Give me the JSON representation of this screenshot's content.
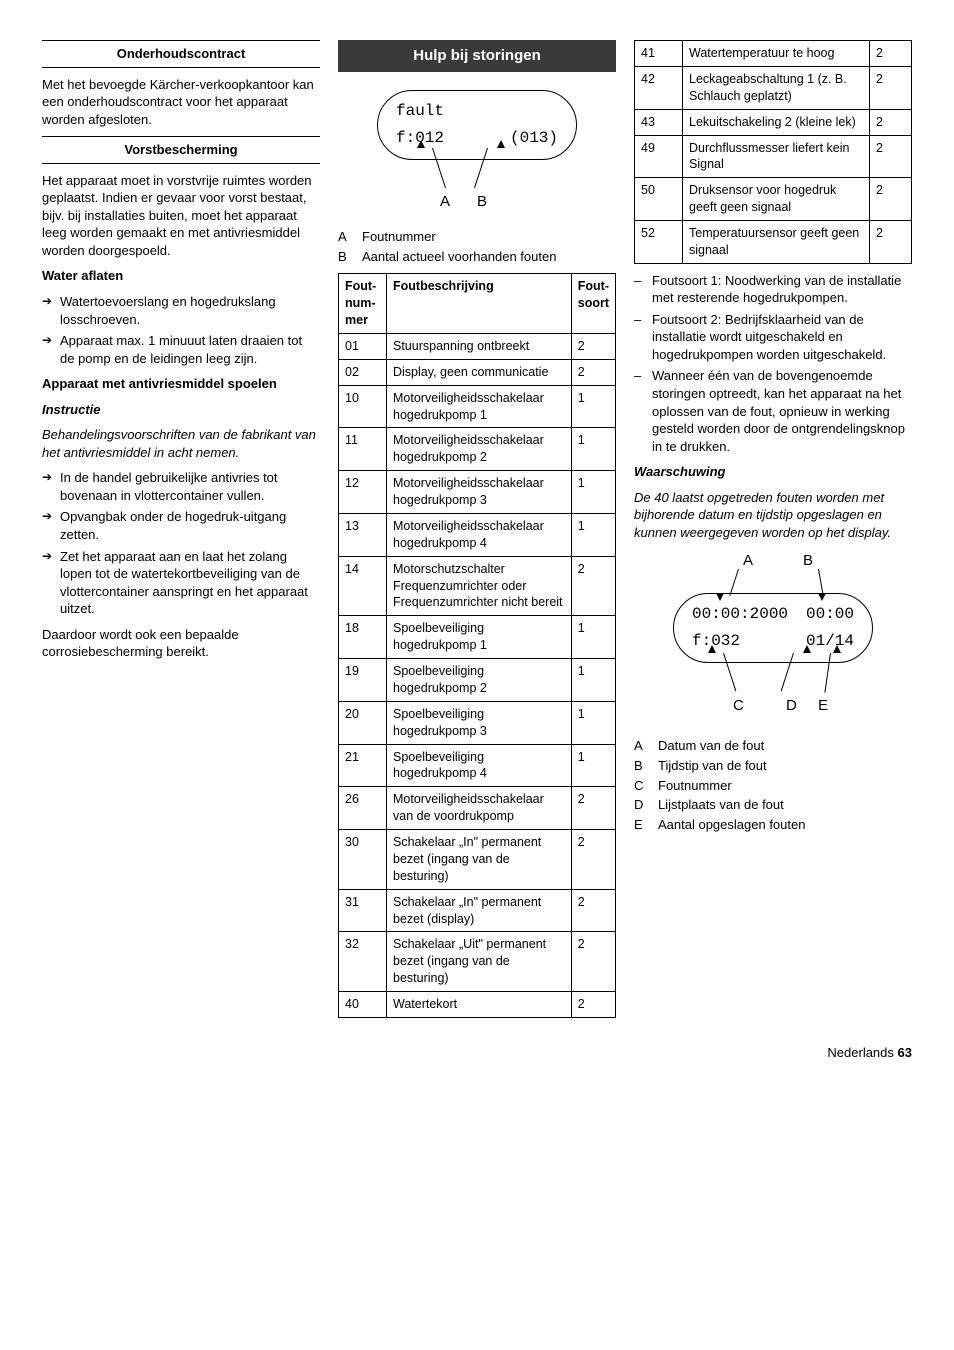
{
  "col1": {
    "h1": "Onderhoudscontract",
    "p1": "Met het bevoegde Kärcher-verkoopkantoor kan een onderhoudscontract voor het apparaat worden afgesloten.",
    "h2": "Vorstbescherming",
    "p2": "Het apparaat moet in vorstvrije ruimtes worden geplaatst. Indien er gevaar voor vorst bestaat, bijv. bij installaties buiten, moet het apparaat leeg worden gemaakt en met antivriesmiddel worden doorgespoeld.",
    "h3": "Water aflaten",
    "b1": "Watertoevoerslang en hogedrukslang losschroeven.",
    "b2": "Apparaat max. 1 minuuut laten draaien tot de pomp en de leidingen leeg zijn.",
    "h4": "Apparaat met antivriesmiddel spoelen",
    "h5": "Instructie",
    "p3": "Behandelingsvoorschriften van de fabrikant van het antivriesmiddel in acht nemen.",
    "b3": "In de handel gebruikelijke antivries tot bovenaan in vlottercontainer vullen.",
    "b4": "Opvangbak onder de hogedruk-uitgang zetten.",
    "b5": "Zet het apparaat aan en laat het zolang lopen tot de watertekortbeveiliging van de vlottercontainer aanspringt en het apparaat uitzet.",
    "p4": "Daardoor wordt ook een bepaalde corrosiebescherming bereikt."
  },
  "col2": {
    "title": "Hulp bij storingen",
    "screen_l1": "fault",
    "screen_l2a": "f:012",
    "screen_l2b": "(013)",
    "legA": "Foutnummer",
    "legB": "Aantal actueel voorhanden fouten",
    "th1": "Fout-num-mer",
    "th2": "Foutbeschrijving",
    "th3": "Fout-soort",
    "rows": [
      {
        "n": "01",
        "d": "Stuurspanning ontbreekt",
        "t": "2"
      },
      {
        "n": "02",
        "d": "Display, geen communicatie",
        "t": "2"
      },
      {
        "n": "10",
        "d": "Motorveiligheidsschakelaar hogedrukpomp 1",
        "t": "1"
      },
      {
        "n": "11",
        "d": "Motorveiligheidsschakelaar hogedrukpomp 2",
        "t": "1"
      },
      {
        "n": "12",
        "d": "Motorveiligheidsschakelaar hogedrukpomp 3",
        "t": "1"
      },
      {
        "n": "13",
        "d": "Motorveiligheidsschakelaar hogedrukpomp 4",
        "t": "1"
      },
      {
        "n": "14",
        "d": "Motorschutzschalter Frequenzumrichter oder Frequenzumrichter nicht bereit",
        "t": "2"
      },
      {
        "n": "18",
        "d": "Spoelbeveiliging hogedrukpomp 1",
        "t": "1"
      },
      {
        "n": "19",
        "d": "Spoelbeveiliging hogedrukpomp 2",
        "t": "1"
      },
      {
        "n": "20",
        "d": "Spoelbeveiliging hogedrukpomp 3",
        "t": "1"
      },
      {
        "n": "21",
        "d": "Spoelbeveiliging hogedrukpomp 4",
        "t": "1"
      },
      {
        "n": "26",
        "d": "Motorveiligheidsschakelaar van de voordrukpomp",
        "t": "2"
      },
      {
        "n": "30",
        "d": "Schakelaar „In\" permanent bezet (ingang van de besturing)",
        "t": "2"
      },
      {
        "n": "31",
        "d": "Schakelaar „In\" permanent bezet (display)",
        "t": "2"
      },
      {
        "n": "32",
        "d": "Schakelaar „Uit\" permanent bezet (ingang van de besturing)",
        "t": "2"
      },
      {
        "n": "40",
        "d": "Watertekort",
        "t": "2"
      }
    ]
  },
  "col3": {
    "rows2": [
      {
        "n": "41",
        "d": "Watertemperatuur te hoog",
        "t": "2"
      },
      {
        "n": "42",
        "d": "Leckageabschaltung 1 (z. B. Schlauch geplatzt)",
        "t": "2"
      },
      {
        "n": "43",
        "d": "Lekuitschakeling 2 (kleine lek)",
        "t": "2"
      },
      {
        "n": "49",
        "d": "Durchflussmesser liefert kein Signal",
        "t": "2"
      },
      {
        "n": "50",
        "d": "Druksensor voor hogedruk geeft geen signaal",
        "t": "2"
      },
      {
        "n": "52",
        "d": "Temperatuursensor geeft geen signaal",
        "t": "2"
      }
    ],
    "d1": "Foutsoort 1: Noodwerking van de installatie met resterende hogedrukpompen.",
    "d2": "Foutsoort 2: Bedrijfsklaarheid van de installatie wordt uitgeschakeld en hogedrukpompen worden uitgeschakeld.",
    "d3": "Wanneer één van de bovengenoemde storingen optreedt, kan het apparaat na het oplossen van de fout, opnieuw in werking gesteld worden door de ontgrendelingsknop in te drukken.",
    "warn": "Waarschuwing",
    "p1": "De 40 laatst opgetreden fouten worden met bijhorende datum en tijdstip opgeslagen en kunnen weergegeven worden op het display.",
    "screen_l1a": "00:00:2000",
    "screen_l1b": "00:00",
    "screen_l2a": "f:032",
    "screen_l2b": "01/14",
    "legA": "Datum van de fout",
    "legB": "Tijdstip van de fout",
    "legC": "Foutnummer",
    "legD": "Lijstplaats van de fout",
    "legE": "Aantal opgeslagen fouten"
  },
  "footer": {
    "lang": "Nederlands",
    "page": "63"
  }
}
